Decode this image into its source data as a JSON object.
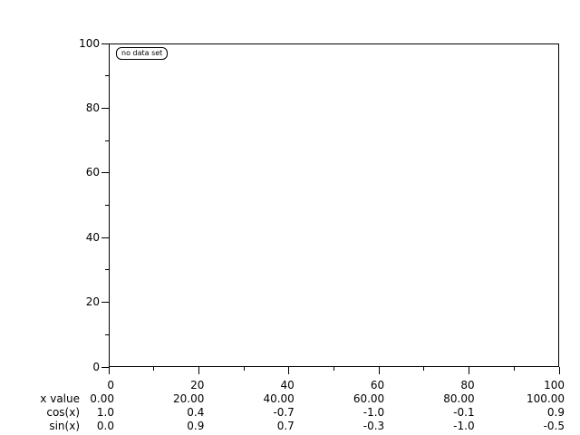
{
  "window": {
    "background": "#ffffff",
    "foreground": "#000000"
  },
  "plot": {
    "legend_label": "no data set",
    "frame_color": "#000000",
    "x_axis": {
      "min": 0,
      "max": 100,
      "major_step": 20,
      "minor_step": 10,
      "tick_labels": [
        "0",
        "20",
        "40",
        "60",
        "80",
        "100"
      ]
    },
    "y_axis": {
      "min": 0,
      "max": 100,
      "major_step": 20,
      "minor_step": 10,
      "tick_labels": [
        "0",
        "20",
        "40",
        "60",
        "80",
        "100"
      ]
    }
  },
  "table": {
    "rows": [
      {
        "label": "x value",
        "values": [
          "0.00",
          "20.00",
          "40.00",
          "60.00",
          "80.00",
          "100.00"
        ]
      },
      {
        "label": "cos(x)",
        "values": [
          "1.0",
          "0.4",
          "-0.7",
          "-1.0",
          "-0.1",
          "0.9"
        ]
      },
      {
        "label": "sin(x)",
        "values": [
          "0.0",
          "0.9",
          "0.7",
          "-0.3",
          "-1.0",
          "-0.5"
        ]
      }
    ]
  },
  "chart_data": {
    "type": "line",
    "title": "",
    "xlabel": "",
    "ylabel": "",
    "xlim": [
      0,
      100
    ],
    "ylim": [
      0,
      100
    ],
    "x_ticks": [
      0,
      20,
      40,
      60,
      80,
      100
    ],
    "y_ticks": [
      0,
      20,
      40,
      60,
      80,
      100
    ],
    "grid": false,
    "legend": [
      "no data set"
    ],
    "legend_position": "top-left inside plot",
    "plotted_curves": [],
    "series": [
      {
        "name": "x value",
        "x": [
          0,
          20,
          40,
          60,
          80,
          100
        ],
        "values": [
          0.0,
          20.0,
          40.0,
          60.0,
          80.0,
          100.0
        ]
      },
      {
        "name": "cos(x)",
        "x": [
          0,
          20,
          40,
          60,
          80,
          100
        ],
        "values": [
          1.0,
          0.4,
          -0.7,
          -1.0,
          -0.1,
          0.9
        ]
      },
      {
        "name": "sin(x)",
        "x": [
          0,
          20,
          40,
          60,
          80,
          100
        ],
        "values": [
          0.0,
          0.9,
          0.7,
          -0.3,
          -1.0,
          -0.5
        ]
      }
    ]
  }
}
